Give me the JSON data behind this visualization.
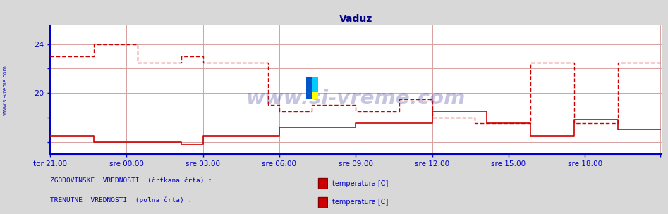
{
  "title": "Vaduz",
  "title_color": "#00008B",
  "title_fontsize": 10,
  "plot_bg_color": "#ffffff",
  "fig_bg_color": "#d8d8d8",
  "grid_color": "#d8a0a0",
  "axis_color": "#0000cc",
  "tick_label_color": "#0000cc",
  "watermark": "www.si-vreme.com",
  "watermark_color": "#4040a0",
  "watermark_alpha": 0.3,
  "sidebar_text": "www.si-vreme.com",
  "sidebar_color": "#0000cc",
  "ylim": [
    15.0,
    25.5
  ],
  "yticks": [
    16,
    18,
    20,
    22,
    24
  ],
  "ytick_labels": [
    "",
    "",
    "20",
    "",
    "24"
  ],
  "x_tick_positions": [
    0,
    63,
    126,
    189,
    252,
    315,
    378,
    441,
    503
  ],
  "x_labels": [
    "tor 21:00",
    "sre 00:00",
    "sre 03:00",
    "sre 06:00",
    "sre 09:00",
    "sre 12:00",
    "sre 15:00",
    "sre 18:00",
    ""
  ],
  "n_points": 504,
  "dashed_line_color": "#cc0000",
  "solid_line_color": "#cc0000",
  "legend_text1": "ZGODOVINSKE  VREDNOSTI  (črtkana črta) :",
  "legend_text2": "TRENUTNE  VREDNOSTI  (polna črta) :",
  "legend_item1": "temperatura [C]",
  "legend_item2": "temperatura [C]",
  "legend_color": "#0000cc",
  "dashed_data_x": [
    0,
    36,
    36,
    72,
    72,
    108,
    108,
    126,
    126,
    180,
    180,
    189,
    189,
    216,
    216,
    252,
    252,
    288,
    288,
    315,
    315,
    350,
    350,
    396,
    396,
    432,
    432,
    468,
    468,
    503
  ],
  "dashed_data_y": [
    23.0,
    23.0,
    24.0,
    24.0,
    22.5,
    22.5,
    23.0,
    23.0,
    22.5,
    22.5,
    19.0,
    19.0,
    18.5,
    18.5,
    19.0,
    19.0,
    18.5,
    18.5,
    19.5,
    19.5,
    18.0,
    18.0,
    17.5,
    17.5,
    22.5,
    22.5,
    17.5,
    17.5,
    22.5,
    22.5
  ],
  "solid_data_x": [
    0,
    36,
    36,
    108,
    108,
    126,
    126,
    189,
    189,
    252,
    252,
    315,
    315,
    360,
    360,
    396,
    396,
    432,
    432,
    468,
    468,
    503
  ],
  "solid_data_y": [
    16.5,
    16.5,
    16.0,
    16.0,
    15.8,
    15.8,
    16.5,
    16.5,
    17.2,
    17.2,
    17.5,
    17.5,
    18.5,
    18.5,
    17.5,
    17.5,
    16.5,
    16.5,
    17.8,
    17.8,
    17.0,
    17.0
  ]
}
